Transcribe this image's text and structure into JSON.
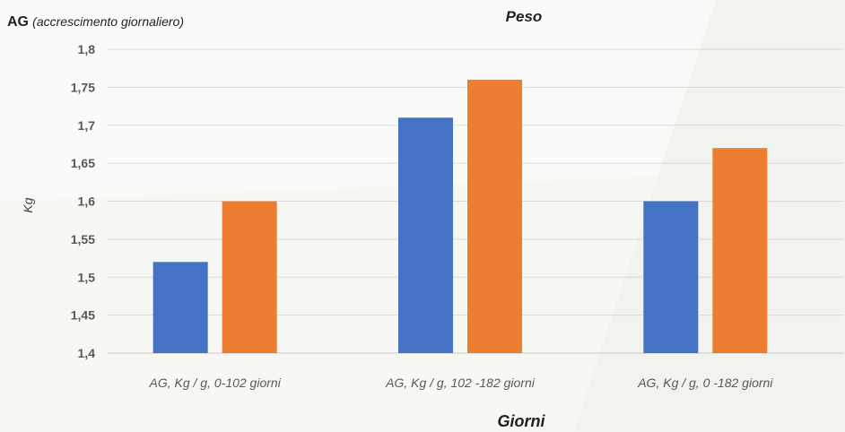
{
  "heading": {
    "main": "AG",
    "sub": "(accrescimento giornaliero)"
  },
  "chart_data": {
    "type": "bar",
    "title": "Peso",
    "xlabel": "Giorni",
    "ylabel": "Kg",
    "ylim": [
      1.4,
      1.8
    ],
    "yticks": [
      "1,4",
      "1,45",
      "1,5",
      "1,55",
      "1,6",
      "1,65",
      "1,7",
      "1,75",
      "1,8"
    ],
    "categories": [
      "AG, Kg / g, 0-102 giorni",
      "AG, Kg / g, 102 -182 giorni",
      "AG, Kg / g, 0 -182 giorni"
    ],
    "series": [
      {
        "values": [
          1.52,
          1.71,
          1.6
        ],
        "color": "#4472c4"
      },
      {
        "values": [
          1.6,
          1.76,
          1.67
        ],
        "color": "#ed7d31"
      }
    ],
    "grid": true,
    "legend": "none"
  },
  "colors": {
    "background": "#f1f3ee",
    "gridline": "#d9d9d9",
    "axis_text": "#595959"
  }
}
